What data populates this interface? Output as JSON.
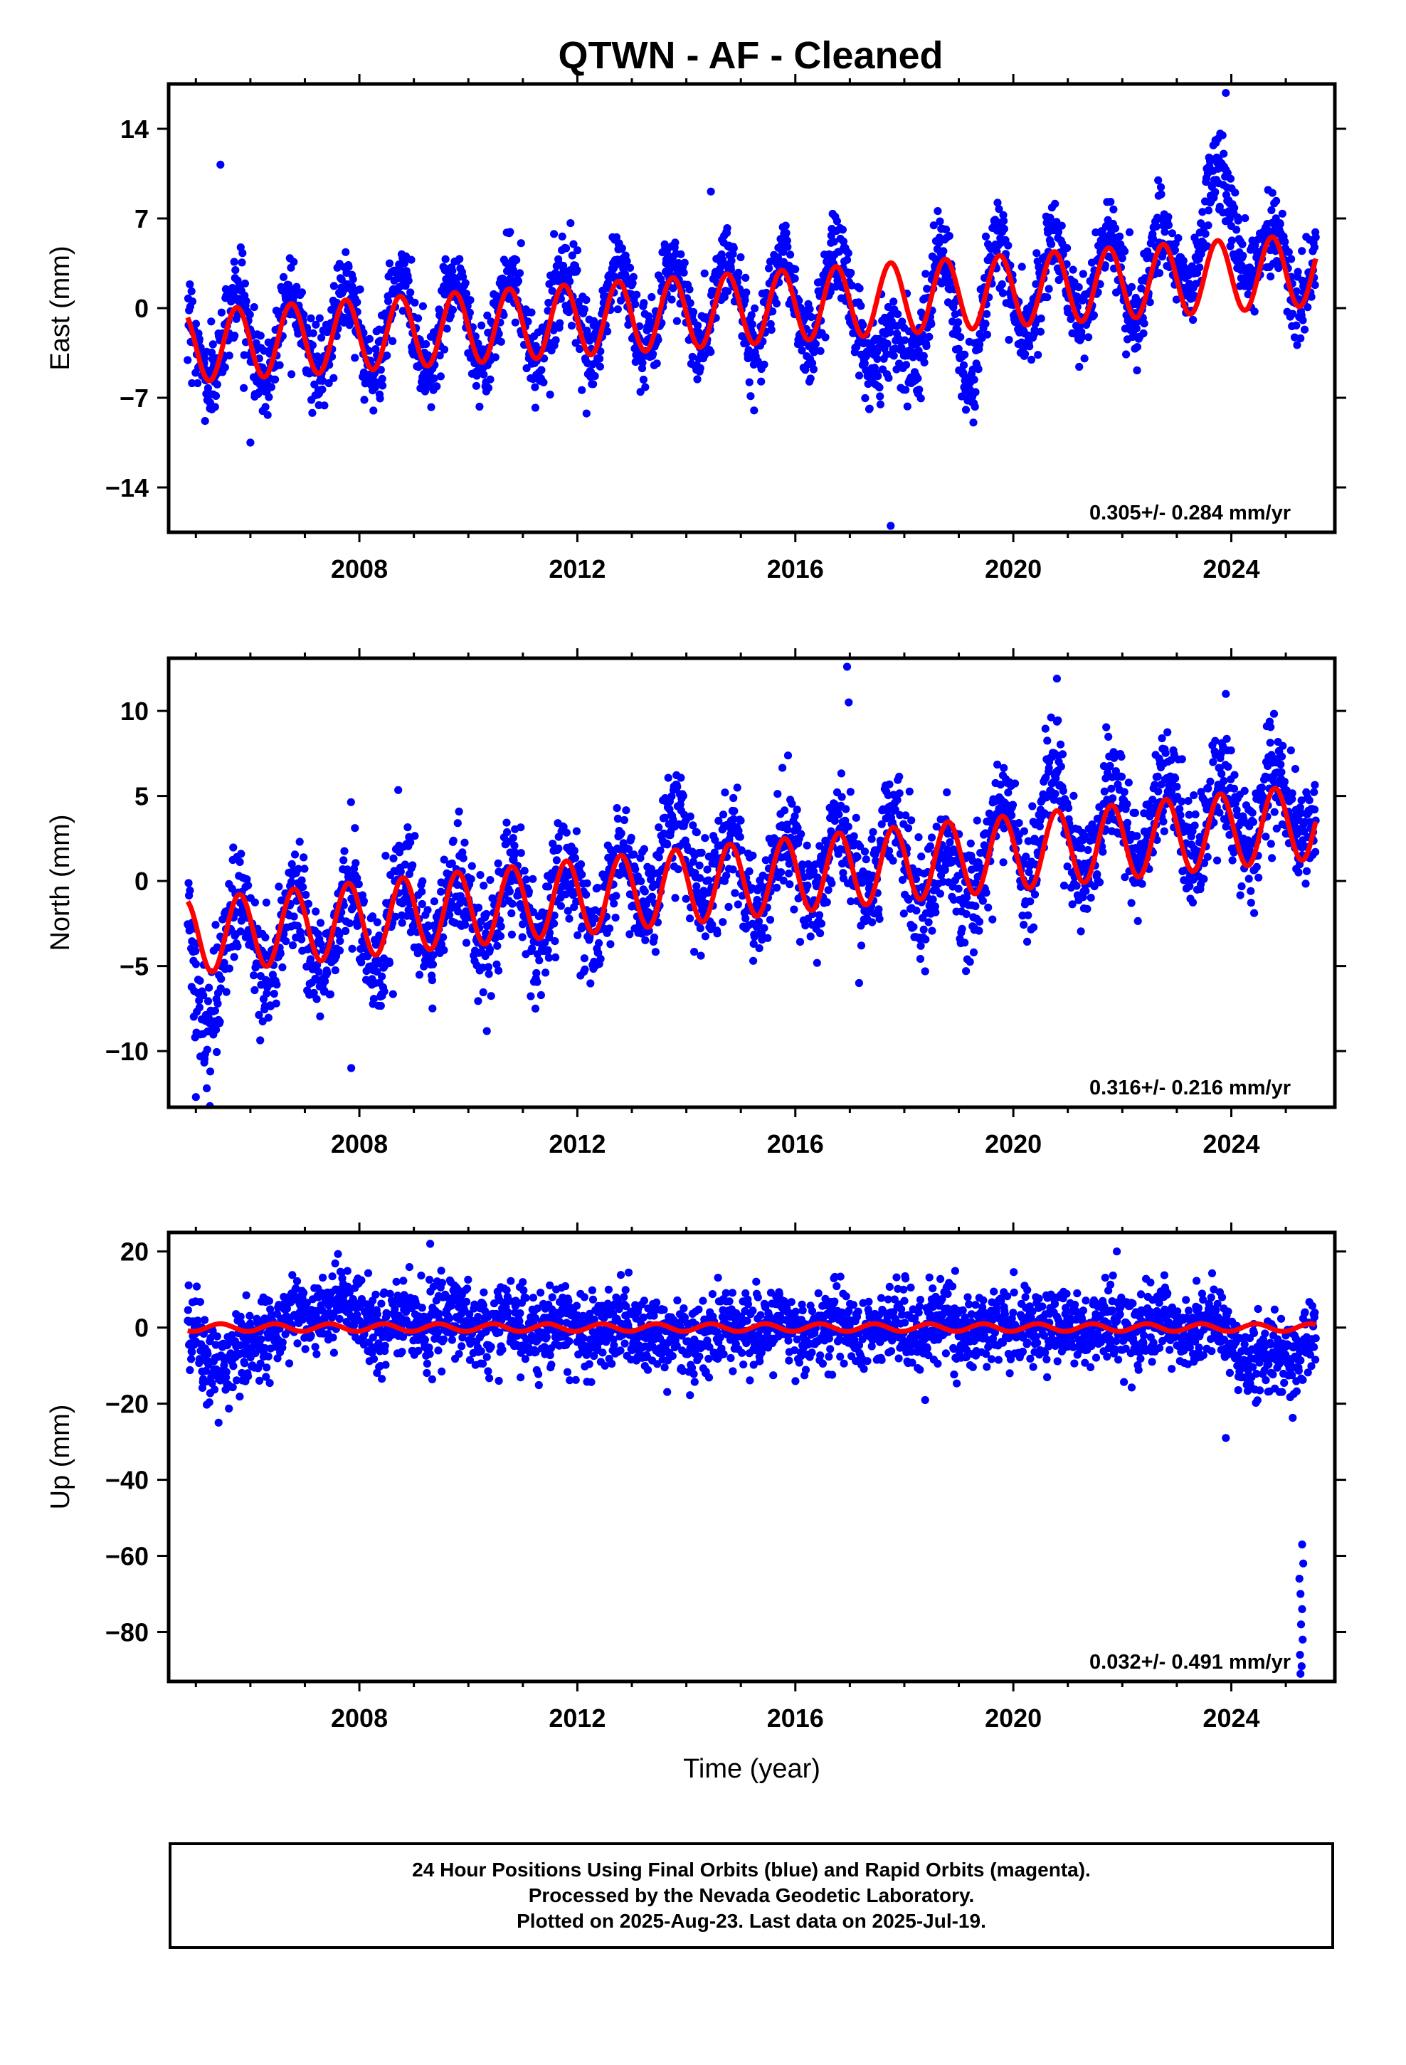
{
  "title": "QTWN  - AF - Cleaned",
  "caption": {
    "line1": "24 Hour Positions Using Final Orbits (blue) and Rapid Orbits (magenta).",
    "line2": "Processed by the Nevada Geodetic Laboratory.",
    "line3": "Plotted on 2025-Aug-23. Last data on 2025-Jul-19."
  },
  "colors": {
    "observations": "#0000ff",
    "model_fit": "#ff0000",
    "frame": "#000000"
  },
  "chart_data": [
    {
      "type": "scatter",
      "name": "east",
      "xlabel": "",
      "ylabel": "East (mm)",
      "xlim": [
        2004.5,
        2025.9
      ],
      "ylim": [
        -17.5,
        17.5
      ],
      "xticks": [
        2008,
        2012,
        2016,
        2020,
        2024
      ],
      "yticks": [
        -14,
        -7,
        0,
        7,
        14
      ],
      "rate_text": "0.305+/- 0.284 mm/yr",
      "grid": false,
      "series": [
        {
          "role": "observations",
          "x_start": 2004.85,
          "x_end": 2025.55,
          "trend_start": -2.5,
          "trend_end": 3.5,
          "annual_amplitude": 3.5,
          "annual_phase": 0.5,
          "noise": 1.6,
          "anomalies": [
            {
              "x_from": 2017.2,
              "x_to": 2018.3,
              "offset": -6.5
            },
            {
              "x_from": 2018.7,
              "x_to": 2019.5,
              "offset": -5.0
            },
            {
              "x_from": 2019.8,
              "x_to": 2020.1,
              "offset": -2.0
            },
            {
              "x_from": 2023.0,
              "x_to": 2024.6,
              "offset": 4.5
            }
          ],
          "outliers": [
            [
              2006.0,
              -10.5
            ],
            [
              2005.45,
              11.2
            ],
            [
              2014.45,
              9.1
            ],
            [
              2017.75,
              -17.0
            ],
            [
              2023.9,
              16.8
            ]
          ]
        },
        {
          "role": "model_fit",
          "x_start": 2004.85,
          "x_end": 2025.55,
          "trend_start": -3.0,
          "trend_end": 3.0,
          "annual_amplitude": 2.8,
          "annual_phase": 0.5
        }
      ]
    },
    {
      "type": "scatter",
      "name": "north",
      "xlabel": "",
      "ylabel": "North (mm)",
      "xlim": [
        2004.5,
        2025.9
      ],
      "ylim": [
        -13.3,
        13.1
      ],
      "xticks": [
        2008,
        2012,
        2016,
        2020,
        2024
      ],
      "yticks": [
        -10,
        -5,
        0,
        5,
        10
      ],
      "rate_text": "0.316+/- 0.216 mm/yr",
      "grid": false,
      "series": [
        {
          "role": "observations",
          "x_start": 2004.85,
          "x_end": 2025.55,
          "trend_start": -4.0,
          "trend_end": 4.5,
          "annual_amplitude": 2.3,
          "annual_phase": 0.55,
          "noise": 1.6,
          "anomalies": [
            {
              "x_from": 2004.85,
              "x_to": 2005.4,
              "offset": -3.5
            },
            {
              "x_from": 2013.0,
              "x_to": 2014.6,
              "offset": 2.0
            },
            {
              "x_from": 2018.2,
              "x_to": 2019.4,
              "offset": -2.5
            },
            {
              "x_from": 2020.3,
              "x_to": 2021.0,
              "offset": 2.5
            }
          ],
          "outliers": [
            [
              2005.0,
              -12.7
            ],
            [
              2007.85,
              -11.0
            ],
            [
              2016.95,
              12.6
            ],
            [
              2016.98,
              10.5
            ],
            [
              2020.8,
              11.9
            ],
            [
              2023.9,
              11.0
            ]
          ]
        },
        {
          "role": "model_fit",
          "x_start": 2004.85,
          "x_end": 2025.55,
          "trend_start": -3.3,
          "trend_end": 3.5,
          "annual_amplitude": 2.2,
          "annual_phase": 0.55
        }
      ]
    },
    {
      "type": "scatter",
      "name": "up",
      "xlabel": "Time (year)",
      "ylabel": "Up (mm)",
      "xlim": [
        2004.5,
        2025.9
      ],
      "ylim": [
        -93,
        25
      ],
      "xticks": [
        2008,
        2012,
        2016,
        2020,
        2024
      ],
      "yticks": [
        -80,
        -60,
        -40,
        -20,
        0,
        20
      ],
      "rate_text": "0.032+/- 0.491 mm/yr",
      "grid": false,
      "series": [
        {
          "role": "observations",
          "x_start": 2004.85,
          "x_end": 2025.55,
          "trend_start": 0.0,
          "trend_end": 0.0,
          "annual_amplitude": 2.0,
          "annual_phase": 0.5,
          "noise": 5.0,
          "anomalies": [
            {
              "x_from": 2004.85,
              "x_to": 2006.2,
              "offset": -10.0
            },
            {
              "x_from": 2006.6,
              "x_to": 2008.4,
              "offset": 6.0
            },
            {
              "x_from": 2008.4,
              "x_to": 2010.5,
              "offset": 3.0
            },
            {
              "x_from": 2013.0,
              "x_to": 2014.5,
              "offset": -3.0
            },
            {
              "x_from": 2023.7,
              "x_to": 2025.55,
              "offset": -9.0
            }
          ],
          "outliers": [
            [
              2009.3,
              22.0
            ],
            [
              2021.9,
              20.0
            ],
            [
              2023.9,
              -29.0
            ],
            [
              2025.3,
              -57.0
            ],
            [
              2025.32,
              -62.0
            ],
            [
              2025.25,
              -66.0
            ],
            [
              2025.27,
              -70.0
            ],
            [
              2025.3,
              -74.0
            ],
            [
              2025.28,
              -78.0
            ],
            [
              2025.31,
              -82.0
            ],
            [
              2025.26,
              -86.0
            ],
            [
              2025.29,
              -89.0
            ],
            [
              2025.27,
              -91.0
            ]
          ]
        },
        {
          "role": "model_fit",
          "x_start": 2004.85,
          "x_end": 2025.55,
          "trend_start": 0.0,
          "trend_end": 0.0,
          "annual_amplitude": 1.0,
          "annual_phase": 0.2
        }
      ]
    }
  ]
}
